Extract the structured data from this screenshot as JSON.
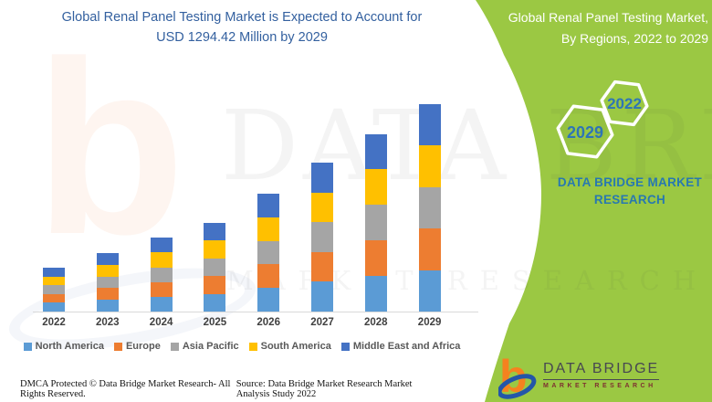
{
  "header": {
    "title_line1": "Global Renal Panel Testing Market is Expected to Account for",
    "title_line2": "USD 1294.42 Million by 2029"
  },
  "right_panel": {
    "title_line1": "Global Renal Panel Testing Market,",
    "title_line2": "By Regions, 2022 to 2029",
    "hex_year_top": "2022",
    "hex_year_bottom": "2029",
    "brand_line1": "DATA BRIDGE MARKET",
    "brand_line2": "RESEARCH",
    "bg_color": "#9BC843",
    "hex_year_color": "#2E75B6",
    "brand_color": "#2878B0"
  },
  "logo": {
    "monogram": "b",
    "name": "DATA BRIDGE",
    "tagline": "MARKET RESEARCH",
    "monogram_color": "#F5821F",
    "swoosh_color": "#2456A8"
  },
  "watermark": {
    "line1": "DATA BRIDGE",
    "line2": "MARKET RESEARCH",
    "ghost_letter": "b"
  },
  "footer": {
    "left": "DMCA Protected © Data Bridge Market Research- All Rights Reserved.",
    "right": "Source: Data Bridge Market Research Market Analysis Study 2022"
  },
  "chart_data": {
    "type": "bar",
    "stacked": true,
    "title": "Global Renal Panel Testing Market is Expected to Account for USD 1294.42 Million by 2029",
    "unit": "USD Million",
    "categories": [
      "2022",
      "2023",
      "2024",
      "2025",
      "2026",
      "2027",
      "2028",
      "2029"
    ],
    "series": [
      {
        "name": "North America",
        "color": "#5B9BD5",
        "values": [
          55,
          73,
          92,
          111,
          147,
          186,
          222,
          258.88
        ]
      },
      {
        "name": "Europe",
        "color": "#ED7D31",
        "values": [
          55,
          73,
          92,
          111,
          147,
          186,
          222,
          258.88
        ]
      },
      {
        "name": "Asia Pacific",
        "color": "#A5A5A5",
        "values": [
          55,
          73,
          93,
          111,
          147,
          186,
          222,
          258.89
        ]
      },
      {
        "name": "South America",
        "color": "#FFC000",
        "values": [
          55,
          73,
          92,
          111,
          147,
          186,
          222,
          258.88
        ]
      },
      {
        "name": "Middle East and Africa",
        "color": "#4472C4",
        "values": [
          55,
          73,
          93,
          111,
          147,
          186,
          222,
          258.89
        ]
      }
    ],
    "totals": [
      275,
      365,
      462,
      555,
      735,
      930,
      1110,
      1294.42
    ],
    "value_axis_visible": false,
    "grid": false,
    "legend_position": "bottom"
  }
}
